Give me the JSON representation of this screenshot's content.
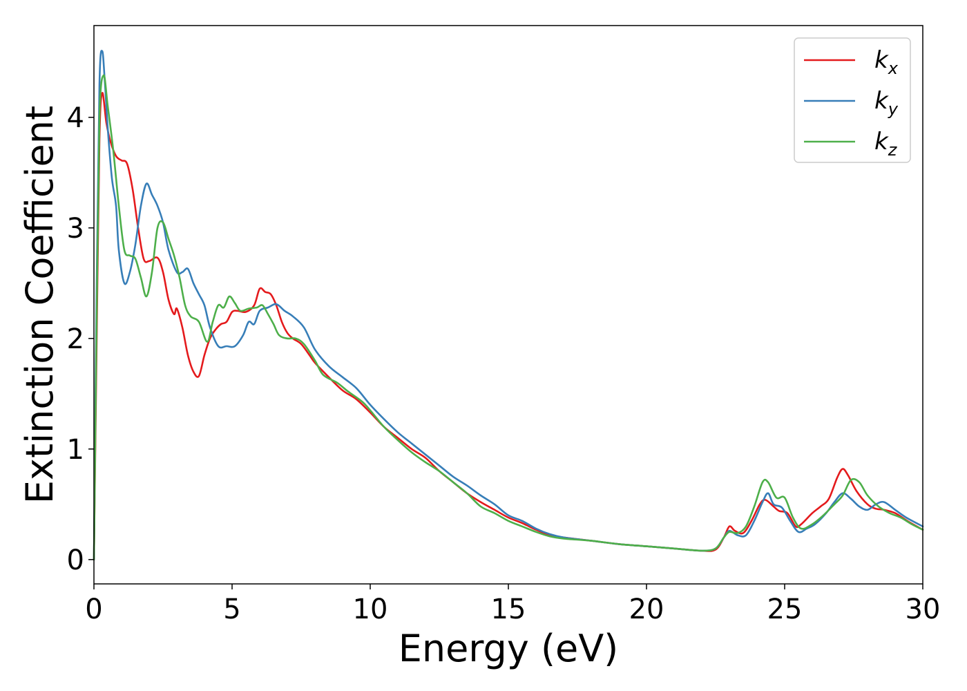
{
  "chart_data": {
    "type": "line",
    "title": "",
    "xlabel": "Energy (eV)",
    "ylabel": "Extinction Coefficient",
    "xlim": [
      0,
      30
    ],
    "ylim": [
      -0.22,
      4.83
    ],
    "x_ticks": [
      0,
      5,
      10,
      15,
      20,
      25,
      30
    ],
    "y_ticks": [
      0,
      1,
      2,
      3,
      4
    ],
    "grid": false,
    "legend": {
      "position": "top-right",
      "entries": [
        {
          "base": "k",
          "sub": "x"
        },
        {
          "base": "k",
          "sub": "y"
        },
        {
          "base": "k",
          "sub": "z"
        }
      ]
    },
    "series": [
      {
        "name": "kx",
        "color": "#e41a1c",
        "points": [
          [
            0,
            0
          ],
          [
            0.1,
            2.0
          ],
          [
            0.2,
            3.8
          ],
          [
            0.3,
            4.22
          ],
          [
            0.45,
            3.95
          ],
          [
            0.6,
            3.78
          ],
          [
            0.8,
            3.65
          ],
          [
            1.0,
            3.61
          ],
          [
            1.2,
            3.58
          ],
          [
            1.4,
            3.35
          ],
          [
            1.6,
            3.0
          ],
          [
            1.8,
            2.72
          ],
          [
            2.0,
            2.7
          ],
          [
            2.3,
            2.73
          ],
          [
            2.5,
            2.6
          ],
          [
            2.7,
            2.35
          ],
          [
            2.9,
            2.22
          ],
          [
            3.0,
            2.27
          ],
          [
            3.2,
            2.1
          ],
          [
            3.4,
            1.85
          ],
          [
            3.6,
            1.7
          ],
          [
            3.8,
            1.66
          ],
          [
            4.0,
            1.85
          ],
          [
            4.2,
            2.0
          ],
          [
            4.4,
            2.08
          ],
          [
            4.6,
            2.13
          ],
          [
            4.8,
            2.15
          ],
          [
            5.0,
            2.24
          ],
          [
            5.2,
            2.25
          ],
          [
            5.5,
            2.24
          ],
          [
            5.8,
            2.3
          ],
          [
            6.0,
            2.45
          ],
          [
            6.2,
            2.42
          ],
          [
            6.4,
            2.4
          ],
          [
            6.6,
            2.3
          ],
          [
            6.8,
            2.15
          ],
          [
            7.0,
            2.05
          ],
          [
            7.2,
            2.0
          ],
          [
            7.5,
            1.95
          ],
          [
            7.8,
            1.85
          ],
          [
            8.0,
            1.78
          ],
          [
            8.5,
            1.65
          ],
          [
            9.0,
            1.53
          ],
          [
            9.5,
            1.45
          ],
          [
            10.0,
            1.33
          ],
          [
            10.5,
            1.2
          ],
          [
            11.0,
            1.1
          ],
          [
            11.5,
            1.0
          ],
          [
            12.0,
            0.92
          ],
          [
            12.5,
            0.8
          ],
          [
            13.0,
            0.7
          ],
          [
            13.5,
            0.6
          ],
          [
            14.0,
            0.52
          ],
          [
            14.5,
            0.45
          ],
          [
            15.0,
            0.38
          ],
          [
            15.5,
            0.33
          ],
          [
            16.0,
            0.27
          ],
          [
            16.5,
            0.22
          ],
          [
            17.0,
            0.2
          ],
          [
            18.0,
            0.17
          ],
          [
            19.0,
            0.14
          ],
          [
            20.0,
            0.12
          ],
          [
            21.0,
            0.1
          ],
          [
            22.0,
            0.08
          ],
          [
            22.5,
            0.09
          ],
          [
            22.8,
            0.2
          ],
          [
            23.0,
            0.3
          ],
          [
            23.2,
            0.26
          ],
          [
            23.5,
            0.24
          ],
          [
            23.8,
            0.35
          ],
          [
            24.1,
            0.5
          ],
          [
            24.3,
            0.54
          ],
          [
            24.6,
            0.48
          ],
          [
            24.8,
            0.44
          ],
          [
            25.1,
            0.42
          ],
          [
            25.4,
            0.3
          ],
          [
            25.6,
            0.32
          ],
          [
            26.0,
            0.42
          ],
          [
            26.3,
            0.48
          ],
          [
            26.6,
            0.55
          ],
          [
            26.9,
            0.74
          ],
          [
            27.1,
            0.82
          ],
          [
            27.3,
            0.76
          ],
          [
            27.6,
            0.62
          ],
          [
            28.0,
            0.5
          ],
          [
            28.3,
            0.46
          ],
          [
            28.6,
            0.45
          ],
          [
            29.0,
            0.42
          ],
          [
            29.5,
            0.34
          ],
          [
            30.0,
            0.27
          ]
        ]
      },
      {
        "name": "ky",
        "color": "#377eb8",
        "points": [
          [
            0,
            0
          ],
          [
            0.1,
            2.5
          ],
          [
            0.2,
            4.3
          ],
          [
            0.3,
            4.6
          ],
          [
            0.4,
            4.3
          ],
          [
            0.5,
            3.9
          ],
          [
            0.65,
            3.45
          ],
          [
            0.8,
            3.2
          ],
          [
            0.9,
            2.8
          ],
          [
            1.1,
            2.5
          ],
          [
            1.3,
            2.6
          ],
          [
            1.5,
            2.85
          ],
          [
            1.7,
            3.2
          ],
          [
            1.9,
            3.4
          ],
          [
            2.1,
            3.3
          ],
          [
            2.3,
            3.2
          ],
          [
            2.5,
            3.05
          ],
          [
            2.7,
            2.8
          ],
          [
            3.0,
            2.6
          ],
          [
            3.2,
            2.6
          ],
          [
            3.4,
            2.63
          ],
          [
            3.6,
            2.5
          ],
          [
            3.8,
            2.4
          ],
          [
            4.0,
            2.3
          ],
          [
            4.2,
            2.1
          ],
          [
            4.5,
            1.93
          ],
          [
            4.8,
            1.93
          ],
          [
            5.1,
            1.93
          ],
          [
            5.4,
            2.03
          ],
          [
            5.6,
            2.15
          ],
          [
            5.8,
            2.13
          ],
          [
            6.0,
            2.25
          ],
          [
            6.3,
            2.28
          ],
          [
            6.6,
            2.31
          ],
          [
            6.9,
            2.25
          ],
          [
            7.2,
            2.2
          ],
          [
            7.6,
            2.1
          ],
          [
            8.0,
            1.9
          ],
          [
            8.5,
            1.75
          ],
          [
            9.0,
            1.65
          ],
          [
            9.5,
            1.55
          ],
          [
            10.0,
            1.4
          ],
          [
            10.5,
            1.27
          ],
          [
            11.0,
            1.15
          ],
          [
            11.5,
            1.05
          ],
          [
            12.0,
            0.95
          ],
          [
            12.5,
            0.85
          ],
          [
            13.0,
            0.75
          ],
          [
            13.5,
            0.67
          ],
          [
            14.0,
            0.58
          ],
          [
            14.5,
            0.5
          ],
          [
            15.0,
            0.4
          ],
          [
            15.5,
            0.35
          ],
          [
            16.0,
            0.28
          ],
          [
            16.5,
            0.23
          ],
          [
            17.0,
            0.2
          ],
          [
            18.0,
            0.17
          ],
          [
            19.0,
            0.14
          ],
          [
            20.0,
            0.12
          ],
          [
            21.0,
            0.1
          ],
          [
            22.0,
            0.08
          ],
          [
            22.5,
            0.1
          ],
          [
            22.8,
            0.2
          ],
          [
            23.0,
            0.26
          ],
          [
            23.3,
            0.22
          ],
          [
            23.6,
            0.22
          ],
          [
            23.9,
            0.35
          ],
          [
            24.2,
            0.52
          ],
          [
            24.4,
            0.6
          ],
          [
            24.6,
            0.5
          ],
          [
            24.9,
            0.47
          ],
          [
            25.2,
            0.35
          ],
          [
            25.5,
            0.25
          ],
          [
            25.8,
            0.28
          ],
          [
            26.1,
            0.32
          ],
          [
            26.5,
            0.42
          ],
          [
            26.8,
            0.52
          ],
          [
            27.1,
            0.6
          ],
          [
            27.4,
            0.55
          ],
          [
            27.7,
            0.48
          ],
          [
            28.0,
            0.45
          ],
          [
            28.3,
            0.5
          ],
          [
            28.6,
            0.52
          ],
          [
            29.0,
            0.45
          ],
          [
            29.4,
            0.38
          ],
          [
            30.0,
            0.3
          ]
        ]
      },
      {
        "name": "kz",
        "color": "#4daf4a",
        "points": [
          [
            0,
            0
          ],
          [
            0.1,
            2.2
          ],
          [
            0.2,
            4.0
          ],
          [
            0.35,
            4.38
          ],
          [
            0.5,
            4.1
          ],
          [
            0.7,
            3.7
          ],
          [
            0.9,
            3.2
          ],
          [
            1.1,
            2.8
          ],
          [
            1.3,
            2.75
          ],
          [
            1.5,
            2.72
          ],
          [
            1.7,
            2.55
          ],
          [
            1.9,
            2.38
          ],
          [
            2.1,
            2.6
          ],
          [
            2.3,
            3.0
          ],
          [
            2.5,
            3.05
          ],
          [
            2.7,
            2.9
          ],
          [
            2.9,
            2.75
          ],
          [
            3.1,
            2.55
          ],
          [
            3.3,
            2.3
          ],
          [
            3.5,
            2.2
          ],
          [
            3.8,
            2.15
          ],
          [
            4.1,
            1.97
          ],
          [
            4.3,
            2.15
          ],
          [
            4.5,
            2.3
          ],
          [
            4.7,
            2.28
          ],
          [
            4.9,
            2.38
          ],
          [
            5.1,
            2.32
          ],
          [
            5.3,
            2.25
          ],
          [
            5.6,
            2.27
          ],
          [
            5.9,
            2.28
          ],
          [
            6.1,
            2.3
          ],
          [
            6.3,
            2.22
          ],
          [
            6.5,
            2.13
          ],
          [
            6.7,
            2.03
          ],
          [
            7.0,
            2.0
          ],
          [
            7.3,
            2.0
          ],
          [
            7.6,
            1.95
          ],
          [
            8.0,
            1.8
          ],
          [
            8.3,
            1.67
          ],
          [
            8.8,
            1.6
          ],
          [
            9.2,
            1.52
          ],
          [
            9.7,
            1.43
          ],
          [
            10.0,
            1.35
          ],
          [
            10.5,
            1.2
          ],
          [
            11.0,
            1.08
          ],
          [
            11.5,
            0.97
          ],
          [
            12.0,
            0.88
          ],
          [
            12.5,
            0.8
          ],
          [
            13.0,
            0.7
          ],
          [
            13.5,
            0.6
          ],
          [
            14.0,
            0.48
          ],
          [
            14.5,
            0.42
          ],
          [
            15.0,
            0.35
          ],
          [
            15.5,
            0.3
          ],
          [
            16.0,
            0.25
          ],
          [
            16.5,
            0.21
          ],
          [
            17.0,
            0.19
          ],
          [
            18.0,
            0.17
          ],
          [
            19.0,
            0.14
          ],
          [
            20.0,
            0.12
          ],
          [
            21.0,
            0.1
          ],
          [
            22.0,
            0.08
          ],
          [
            22.5,
            0.1
          ],
          [
            22.8,
            0.2
          ],
          [
            23.0,
            0.25
          ],
          [
            23.3,
            0.24
          ],
          [
            23.6,
            0.3
          ],
          [
            23.9,
            0.48
          ],
          [
            24.2,
            0.7
          ],
          [
            24.4,
            0.7
          ],
          [
            24.7,
            0.56
          ],
          [
            25.0,
            0.56
          ],
          [
            25.3,
            0.38
          ],
          [
            25.6,
            0.28
          ],
          [
            26.0,
            0.32
          ],
          [
            26.4,
            0.4
          ],
          [
            26.8,
            0.5
          ],
          [
            27.1,
            0.58
          ],
          [
            27.4,
            0.72
          ],
          [
            27.7,
            0.7
          ],
          [
            28.0,
            0.58
          ],
          [
            28.4,
            0.48
          ],
          [
            28.8,
            0.42
          ],
          [
            29.2,
            0.38
          ],
          [
            29.6,
            0.32
          ],
          [
            30.0,
            0.27
          ]
        ]
      }
    ]
  }
}
